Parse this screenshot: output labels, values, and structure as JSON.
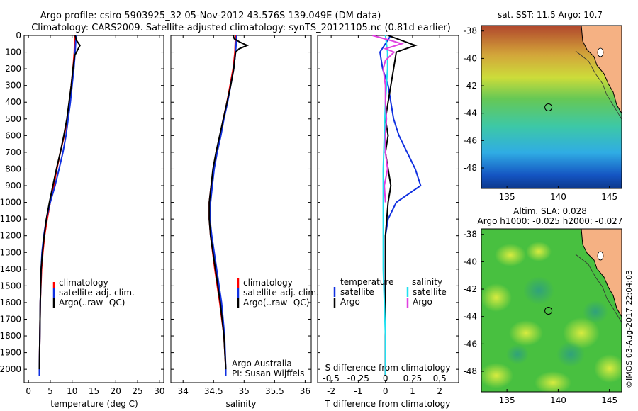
{
  "header": {
    "title_line1": "Argo profile: csiro 5903925_32 05-Nov-2012 43.576S 139.049E (DM data)",
    "title_line2": "Climatology: CARS2009. Satellite-adjusted climatology: synTS_20121105.nc (0.81d earlier)"
  },
  "colors": {
    "climatology": "#ff0000",
    "satellite": "#1030e0",
    "argo": "#000000",
    "sal_satellite": "#20e0f0",
    "sal_argo": "#e040e0",
    "land": "#f5b183"
  },
  "chart_data": [
    {
      "type": "line",
      "name": "temperature-profile",
      "xlabel": "temperature (deg C)",
      "xlim": [
        -1,
        31
      ],
      "xticks": [
        "0",
        "5",
        "10",
        "15",
        "20",
        "25",
        "30"
      ],
      "ylim": [
        0,
        2080
      ],
      "yticks": [
        "0",
        "100",
        "200",
        "300",
        "400",
        "500",
        "600",
        "700",
        "800",
        "900",
        "1000",
        "1100",
        "1200",
        "1300",
        "1400",
        "1500",
        "1600",
        "1700",
        "1800",
        "1900",
        "2000"
      ],
      "legend": [
        "climatology",
        "satellite-adj. clim.",
        "Argo(..raw -QC)"
      ],
      "series": [
        {
          "name": "climatology",
          "color": "red",
          "y": [
            0,
            100,
            200,
            300,
            400,
            500,
            600,
            700,
            800,
            900,
            1000,
            1100,
            1200,
            1300,
            1400,
            1600,
            1800,
            2000,
            2040
          ],
          "x": [
            10.6,
            10.5,
            10.2,
            9.8,
            9.4,
            8.9,
            8.2,
            7.3,
            6.5,
            5.8,
            5.0,
            4.3,
            3.7,
            3.3,
            3.0,
            2.7,
            2.6,
            2.5,
            2.5
          ]
        },
        {
          "name": "satellite-adj. clim.",
          "color": "blue",
          "y": [
            0,
            100,
            200,
            300,
            400,
            500,
            600,
            700,
            800,
            900,
            1000,
            1100,
            1200,
            1300,
            1400,
            1600,
            1800,
            2000,
            2040
          ],
          "x": [
            10.9,
            10.7,
            10.4,
            10.0,
            9.6,
            9.1,
            8.6,
            7.9,
            7.0,
            6.1,
            5.0,
            4.1,
            3.5,
            3.1,
            2.9,
            2.7,
            2.6,
            2.5,
            2.5
          ]
        },
        {
          "name": "Argo(..raw -QC)",
          "color": "black",
          "y": [
            0,
            30,
            60,
            90,
            120,
            200,
            300,
            400,
            500,
            600,
            700,
            800,
            900,
            1000,
            1100,
            1200,
            1300,
            1400,
            1600,
            1800,
            2000
          ],
          "x": [
            10.7,
            11.0,
            11.8,
            11.2,
            10.6,
            10.2,
            9.8,
            9.3,
            8.8,
            8.1,
            7.3,
            6.4,
            5.6,
            4.8,
            4.1,
            3.6,
            3.2,
            2.9,
            2.7,
            2.6,
            2.5
          ]
        }
      ]
    },
    {
      "type": "line",
      "name": "salinity-profile",
      "xlabel": "salinity",
      "xlim": [
        33.8,
        36.1
      ],
      "xticks": [
        "34",
        "34.5",
        "35",
        "35.5",
        "36"
      ],
      "ylim": [
        0,
        2080
      ],
      "legend": [
        "climatology",
        "satellite-adj. clim.",
        "Argo(..raw -QC)"
      ],
      "annotation_line1": "Argo Australia",
      "annotation_line2": "PI: Susan Wijffels",
      "series": [
        {
          "name": "climatology",
          "color": "red",
          "y": [
            0,
            100,
            200,
            300,
            400,
            500,
            600,
            700,
            800,
            900,
            1000,
            1100,
            1200,
            1400,
            1600,
            1800,
            2000,
            2040
          ],
          "x": [
            34.86,
            34.85,
            34.82,
            34.77,
            34.72,
            34.66,
            34.61,
            34.55,
            34.5,
            34.46,
            34.43,
            34.43,
            34.45,
            34.52,
            34.6,
            34.67,
            34.7,
            34.7
          ]
        },
        {
          "name": "satellite-adj. clim.",
          "color": "blue",
          "y": [
            0,
            100,
            200,
            300,
            400,
            500,
            600,
            700,
            800,
            900,
            1000,
            1100,
            1200,
            1400,
            1600,
            1800,
            2000,
            2040
          ],
          "x": [
            34.88,
            34.86,
            34.83,
            34.78,
            34.73,
            34.67,
            34.62,
            34.56,
            34.51,
            34.48,
            34.45,
            34.44,
            34.47,
            34.55,
            34.63,
            34.68,
            34.7,
            34.7
          ]
        },
        {
          "name": "Argo(..raw -QC)",
          "color": "black",
          "y": [
            0,
            20,
            40,
            60,
            80,
            100,
            200,
            300,
            400,
            500,
            600,
            700,
            800,
            900,
            1000,
            1100,
            1200,
            1400,
            1600,
            1800,
            2000
          ],
          "x": [
            34.82,
            34.84,
            34.93,
            35.05,
            34.92,
            34.86,
            34.83,
            34.78,
            34.72,
            34.66,
            34.6,
            34.54,
            34.49,
            34.46,
            34.43,
            34.43,
            34.45,
            34.53,
            34.61,
            34.67,
            34.7
          ]
        }
      ]
    },
    {
      "type": "line",
      "name": "difference-profile",
      "xlabel": "T difference from climatology",
      "xlim": [
        -2.5,
        2.7
      ],
      "xticks": [
        "-2",
        "-1",
        "0",
        "1",
        "2"
      ],
      "toplabel": "S difference from climatology",
      "toplabel_ticks": [
        "-0.5",
        "-0.25",
        "0",
        "0.25",
        "0.5"
      ],
      "ylim": [
        0,
        2080
      ],
      "legend_title_t": "temperature",
      "legend_title_s": "salinity",
      "legend_t": [
        "satellite",
        "Argo"
      ],
      "legend_s": [
        "satellite",
        "Argo"
      ],
      "series": [
        {
          "name": "T satellite",
          "color": "blue",
          "y": [
            0,
            100,
            200,
            300,
            400,
            500,
            600,
            700,
            800,
            850,
            900,
            1000,
            1100,
            1200,
            1400,
            1600,
            1800,
            2000,
            2040
          ],
          "x": [
            0.2,
            -0.2,
            -0.1,
            0.1,
            0.2,
            0.3,
            0.5,
            0.8,
            1.1,
            1.2,
            1.3,
            0.4,
            0.1,
            0.0,
            0.0,
            0.0,
            0.0,
            0.0,
            0.0
          ]
        },
        {
          "name": "T Argo",
          "color": "black",
          "y": [
            0,
            30,
            60,
            100,
            200,
            300,
            400,
            500,
            600,
            700,
            800,
            900,
            1000,
            1200,
            1400,
            1600,
            1800,
            2000,
            2040
          ],
          "x": [
            0.1,
            0.6,
            1.1,
            0.4,
            0.3,
            0.2,
            0.1,
            0.0,
            0.1,
            0.0,
            0.1,
            0.2,
            0.1,
            0.0,
            0.0,
            0.0,
            0.0,
            0.0,
            0.0
          ]
        },
        {
          "name": "S satellite",
          "color": "cyan",
          "y": [
            0,
            100,
            200,
            300,
            400,
            600,
            800,
            1000,
            1200,
            1400,
            1600,
            1800,
            2000,
            2040
          ],
          "x": [
            0.0,
            0.02,
            0.02,
            0.01,
            0.0,
            -0.01,
            -0.02,
            -0.02,
            -0.02,
            -0.02,
            -0.01,
            0.0,
            0.0,
            0.0
          ]
        },
        {
          "name": "S Argo",
          "color": "magenta",
          "y": [
            0,
            30,
            50,
            80,
            100,
            150,
            200,
            300,
            400,
            500,
            600,
            700,
            800,
            900,
            1000
          ],
          "x": [
            -0.12,
            0.05,
            0.15,
            0.0,
            0.08,
            0.0,
            -0.02,
            0.0,
            0.0,
            0.01,
            0.0,
            0.0,
            0.02,
            -0.01,
            0.0
          ]
        }
      ]
    },
    {
      "type": "heatmap",
      "name": "sst-map",
      "title": "sat. SST: 11.5 Argo: 10.7",
      "xticks": [
        "135",
        "140",
        "145"
      ],
      "yticks": [
        "-38",
        "-40",
        "-42",
        "-44",
        "-46",
        "-48"
      ],
      "xlim": [
        132.5,
        146.2
      ],
      "ylim": [
        -49.5,
        -37.6
      ],
      "marker": {
        "lon": 139.049,
        "lat": -43.576
      }
    },
    {
      "type": "heatmap",
      "name": "sla-map",
      "title_line1": "Altim. SLA: 0.028",
      "title_line2": "Argo h1000: -0.025 h2000: -0.027",
      "xticks": [
        "135",
        "140",
        "145"
      ],
      "yticks": [
        "-38",
        "-40",
        "-42",
        "-44",
        "-46",
        "-48"
      ],
      "xlim": [
        132.5,
        146.2
      ],
      "ylim": [
        -49.5,
        -37.6
      ],
      "marker": {
        "lon": 139.049,
        "lat": -43.576
      }
    }
  ],
  "credit": "©IMOS 03-Aug-2017 22:04:03"
}
